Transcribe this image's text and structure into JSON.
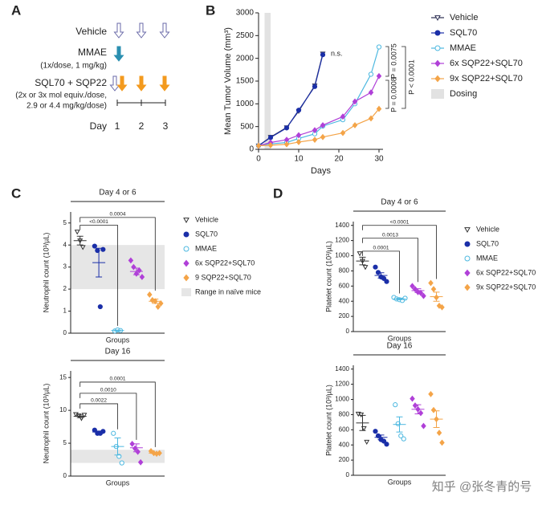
{
  "panel_labels": [
    "A",
    "B",
    "C",
    "D"
  ],
  "schema": {
    "rows": [
      {
        "label": "Vehicle"
      },
      {
        "label": "MMAE",
        "sublabel": [
          "(1x/dose, 1 mg/kg)"
        ]
      },
      {
        "label": "SQL70 + SQP22",
        "sublabel": [
          "(2x or 3x mol equiv./dose,",
          "2.9 or 4.4 mg/kg/dose)"
        ]
      }
    ],
    "day_label": "Day",
    "days": [
      "1",
      "2",
      "3"
    ]
  },
  "chart_data": [
    {
      "type": "line",
      "xlabel": "Days",
      "ylabel": "Mean Tumor Volume (mm³)",
      "x": [
        0,
        3,
        7,
        10,
        14,
        16,
        21,
        24,
        28,
        30
      ],
      "xlim": [
        0,
        31
      ],
      "xticks": [
        0,
        10,
        20,
        30
      ],
      "ylim": [
        0,
        3000
      ],
      "yticks": [
        0,
        500,
        1000,
        1500,
        2000,
        2500,
        3000
      ],
      "band": [
        1.5,
        3
      ],
      "band_label": "Dosing",
      "band_color": "#e2e2e2",
      "annotations": [
        "n.s.",
        "P = 0.0075",
        "P < 0.0001",
        "P = 0.0008"
      ],
      "series": [
        {
          "name": "Vehicle",
          "color": "#2b2d52",
          "marker": "triangle-open",
          "values": [
            80,
            270,
            480,
            840,
            1400,
            2100,
            null,
            null,
            null,
            null
          ]
        },
        {
          "name": "SQL70",
          "color": "#1b2fa8",
          "marker": "circle",
          "values": [
            80,
            260,
            470,
            860,
            1380,
            2080,
            null,
            null,
            null,
            null
          ]
        },
        {
          "name": "MMAE",
          "color": "#4cb8e0",
          "marker": "circle-open",
          "values": [
            80,
            120,
            150,
            240,
            340,
            510,
            650,
            1000,
            1650,
            2250
          ]
        },
        {
          "name": "6x SQP22+SQL70",
          "color": "#b040d8",
          "marker": "diamond",
          "values": [
            80,
            150,
            210,
            310,
            420,
            530,
            720,
            1050,
            1250,
            1610
          ]
        },
        {
          "name": "9x SQP22+SQL70",
          "color": "#f4a448",
          "marker": "diamond",
          "values": [
            80,
            90,
            110,
            160,
            210,
            270,
            360,
            530,
            680,
            890
          ]
        }
      ]
    },
    {
      "type": "dot",
      "title": "Day 4 or 6",
      "xlabel": "Groups",
      "ylabel": "Neutrophil count (10³/µL)",
      "ylim": [
        0,
        5.5
      ],
      "yticks": [
        0,
        1,
        2,
        3,
        4,
        5
      ],
      "band": [
        2,
        4
      ],
      "band_label": "Range in naïve mice",
      "band_color": "#e6e6e6",
      "comparisons": [
        {
          "label": "<0.0001",
          "y": 4.9
        },
        {
          "label": "0.0004",
          "y": 5.25
        }
      ],
      "series": [
        {
          "name": "Vehicle",
          "color": "#333333",
          "marker": "triangle-open",
          "values": [
            4.6,
            4.2,
            3.9
          ],
          "mean": 4.2,
          "sem": 0.2
        },
        {
          "name": "SQL70",
          "color": "#1b2fa8",
          "marker": "circle",
          "values": [
            3.95,
            3.75,
            1.2,
            3.8
          ],
          "mean": 3.2,
          "sem": 0.65
        },
        {
          "name": "MMAE",
          "color": "#4cb8e0",
          "marker": "circle-open",
          "values": [
            0.1,
            0.15,
            0.12
          ],
          "mean": 0.12,
          "sem": 0.02
        },
        {
          "name": "6x SQP22+SQL70",
          "color": "#b040d8",
          "marker": "diamond",
          "values": [
            3.3,
            3.0,
            2.7,
            2.85,
            2.55
          ],
          "mean": 2.8,
          "sem": 0.15
        },
        {
          "name": "9 SQP22+SQL70",
          "color": "#f4a448",
          "marker": "diamond",
          "values": [
            1.75,
            1.5,
            1.45,
            1.2,
            1.35
          ],
          "mean": 1.45,
          "sem": 0.1
        }
      ]
    },
    {
      "type": "dot",
      "title": "Day 16",
      "xlabel": "Groups",
      "ylabel": "Neutrophil count (10³/µL)",
      "ylim": [
        0,
        16
      ],
      "yticks": [
        0,
        5,
        10,
        15
      ],
      "band": [
        2,
        4
      ],
      "band_color": "#e6e6e6",
      "comparisons": [
        {
          "label": "0.0022",
          "y": 11
        },
        {
          "label": "0.0010",
          "y": 12.6
        },
        {
          "label": "0.0001",
          "y": 14.3
        }
      ],
      "series": [
        {
          "color": "#333333",
          "marker": "triangle-open",
          "values": [
            9.4,
            9.2,
            8.8,
            9.3
          ],
          "mean": 9.1,
          "sem": 0.2
        },
        {
          "color": "#1b2fa8",
          "marker": "circle",
          "values": [
            7.0,
            6.5,
            6.5,
            6.8
          ],
          "mean": 6.7,
          "sem": 0.15
        },
        {
          "color": "#4cb8e0",
          "marker": "circle-open",
          "values": [
            6.5,
            4.5,
            3.0,
            2.0
          ],
          "mean": 4.5,
          "sem": 1.3
        },
        {
          "color": "#b040d8",
          "marker": "diamond",
          "values": [
            4.9,
            4.2,
            3.7,
            2.1
          ],
          "mean": 4.3,
          "sem": 0.6
        },
        {
          "color": "#f4a448",
          "marker": "diamond",
          "values": [
            3.8,
            3.5,
            3.4,
            3.5
          ],
          "mean": 3.5,
          "sem": 0.1
        }
      ]
    },
    {
      "type": "dot",
      "title": "Day 4 or 6",
      "xlabel": "Groups",
      "ylabel": "Platelet count (10³/µL)",
      "ylim": [
        0,
        1450
      ],
      "yticks": [
        0,
        200,
        400,
        600,
        800,
        1000,
        1200,
        1400
      ],
      "comparisons": [
        {
          "label": "0.0001",
          "y": 1060
        },
        {
          "label": "0.0013",
          "y": 1230
        },
        {
          "label": "<0.0001",
          "y": 1400
        }
      ],
      "series": [
        {
          "name": "Vehicle",
          "color": "#333333",
          "marker": "triangle-open",
          "values": [
            1030,
            930,
            850
          ],
          "mean": 930,
          "sem": 50
        },
        {
          "name": "SQL70",
          "color": "#1b2fa8",
          "marker": "circle",
          "values": [
            850,
            780,
            720,
            700,
            660
          ],
          "mean": 740,
          "sem": 35
        },
        {
          "name": "MMAE",
          "color": "#4cb8e0",
          "marker": "circle-open",
          "values": [
            450,
            430,
            420,
            410,
            440
          ],
          "mean": 430,
          "sem": 10
        },
        {
          "name": "6x SQP22+SQL70",
          "color": "#b040d8",
          "marker": "diamond",
          "values": [
            600,
            560,
            520,
            510,
            470
          ],
          "mean": 540,
          "sem": 25
        },
        {
          "name": "9x SQP22+SQL70",
          "color": "#f4a448",
          "marker": "diamond",
          "values": [
            640,
            560,
            450,
            340,
            320
          ],
          "mean": 460,
          "sem": 60
        }
      ]
    },
    {
      "type": "dot",
      "title": "Day 16",
      "xlabel": "Groups",
      "ylabel": "Platelet count (10³/µL)",
      "ylim": [
        0,
        1450
      ],
      "yticks": [
        0,
        200,
        400,
        600,
        800,
        1000,
        1200,
        1400
      ],
      "series": [
        {
          "color": "#333333",
          "marker": "triangle-open",
          "values": [
            810,
            800,
            620,
            440
          ],
          "mean": 690,
          "sem": 100
        },
        {
          "color": "#1b2fa8",
          "marker": "circle",
          "values": [
            580,
            520,
            470,
            450,
            410
          ],
          "mean": 500,
          "sem": 30
        },
        {
          "color": "#4cb8e0",
          "marker": "circle-open",
          "values": [
            930,
            680,
            520,
            480
          ],
          "mean": 670,
          "sem": 100
        },
        {
          "color": "#b040d8",
          "marker": "diamond",
          "values": [
            1010,
            920,
            870,
            820,
            650
          ],
          "mean": 870,
          "sem": 60
        },
        {
          "color": "#f4a448",
          "marker": "diamond",
          "values": [
            1070,
            860,
            740,
            560,
            430
          ],
          "mean": 740,
          "sem": 110
        }
      ]
    }
  ],
  "watermark": "知乎 @张冬青的号"
}
